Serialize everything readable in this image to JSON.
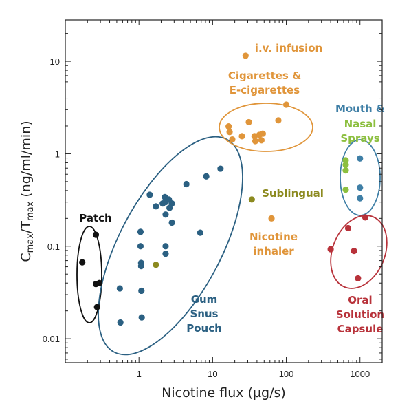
{
  "chart_data": {
    "type": "scatter",
    "xscale": "log",
    "yscale": "log",
    "xlim": [
      0.1,
      2000
    ],
    "ylim": [
      0.0055,
      28
    ],
    "xlabel": "Nicotine flux (µg/s)",
    "ylabel_main": "C",
    "ylabel_sub1": "max",
    "ylabel_mid": "/T",
    "ylabel_sub2": "max",
    "ylabel_units": " (ng/ml/min)",
    "x_ticks": [
      {
        "value": 1,
        "label": "1"
      },
      {
        "value": 10,
        "label": "10"
      },
      {
        "value": 100,
        "label": "100"
      },
      {
        "value": 1000,
        "label": "1000"
      }
    ],
    "y_ticks": [
      {
        "value": 0.01,
        "label": "0.01"
      },
      {
        "value": 0.1,
        "label": "0.1"
      },
      {
        "value": 1,
        "label": "1"
      },
      {
        "value": 10,
        "label": "10"
      }
    ],
    "grid": false,
    "series": [
      {
        "name": "Patch",
        "color": "#111111",
        "points": [
          {
            "x": 0.17,
            "y": 0.067
          },
          {
            "x": 0.26,
            "y": 0.133
          },
          {
            "x": 0.26,
            "y": 0.039
          },
          {
            "x": 0.29,
            "y": 0.04
          },
          {
            "x": 0.27,
            "y": 0.022
          }
        ]
      },
      {
        "name": "Gum Snus Pouch",
        "color": "#2b6082",
        "points": [
          {
            "x": 0.55,
            "y": 0.035
          },
          {
            "x": 0.56,
            "y": 0.015
          },
          {
            "x": 1.05,
            "y": 0.143
          },
          {
            "x": 1.05,
            "y": 0.1
          },
          {
            "x": 1.07,
            "y": 0.066
          },
          {
            "x": 1.07,
            "y": 0.061
          },
          {
            "x": 1.08,
            "y": 0.033
          },
          {
            "x": 1.09,
            "y": 0.017
          },
          {
            "x": 1.4,
            "y": 0.36
          },
          {
            "x": 1.7,
            "y": 0.27
          },
          {
            "x": 2.1,
            "y": 0.29
          },
          {
            "x": 2.25,
            "y": 0.34
          },
          {
            "x": 2.3,
            "y": 0.3
          },
          {
            "x": 2.3,
            "y": 0.22
          },
          {
            "x": 2.3,
            "y": 0.1
          },
          {
            "x": 2.3,
            "y": 0.083
          },
          {
            "x": 2.55,
            "y": 0.32
          },
          {
            "x": 2.6,
            "y": 0.26
          },
          {
            "x": 2.8,
            "y": 0.29
          },
          {
            "x": 2.8,
            "y": 0.18
          },
          {
            "x": 4.4,
            "y": 0.47
          },
          {
            "x": 6.8,
            "y": 0.14
          },
          {
            "x": 8.2,
            "y": 0.57
          },
          {
            "x": 12.8,
            "y": 0.69
          }
        ]
      },
      {
        "name": "Gum Snus Pouch (olive marker)",
        "color": "#8c8a1f",
        "points": [
          {
            "x": 1.7,
            "y": 0.063
          }
        ]
      },
      {
        "name": "Cigarettes & E-cigarettes",
        "color": "#e0953a",
        "points": [
          {
            "x": 16.5,
            "y": 1.98
          },
          {
            "x": 17.0,
            "y": 1.72
          },
          {
            "x": 18.5,
            "y": 1.43
          },
          {
            "x": 25.0,
            "y": 1.55
          },
          {
            "x": 31.0,
            "y": 2.2
          },
          {
            "x": 37.0,
            "y": 1.55
          },
          {
            "x": 38.0,
            "y": 1.37
          },
          {
            "x": 43.0,
            "y": 1.6
          },
          {
            "x": 46.0,
            "y": 1.4
          },
          {
            "x": 48.0,
            "y": 1.65
          },
          {
            "x": 78.0,
            "y": 2.3
          },
          {
            "x": 100.0,
            "y": 3.4
          }
        ]
      },
      {
        "name": "i.v. infusion",
        "color": "#e0953a",
        "points": [
          {
            "x": 28.0,
            "y": 11.5
          }
        ]
      },
      {
        "name": "Nicotine inhaler",
        "color": "#e0953a",
        "points": [
          {
            "x": 63.0,
            "y": 0.2
          }
        ]
      },
      {
        "name": "Sublingual",
        "color": "#8c8a1f",
        "points": [
          {
            "x": 34.0,
            "y": 0.32
          }
        ]
      },
      {
        "name": "Mouth & Nasal Sprays (green)",
        "color": "#8cbf3f",
        "points": [
          {
            "x": 640.0,
            "y": 0.85
          },
          {
            "x": 640.0,
            "y": 0.76
          },
          {
            "x": 640.0,
            "y": 0.66
          },
          {
            "x": 640.0,
            "y": 0.41
          }
        ]
      },
      {
        "name": "Mouth & Nasal Sprays (blue)",
        "color": "#3f7fa6",
        "points": [
          {
            "x": 1000.0,
            "y": 0.89
          },
          {
            "x": 1000.0,
            "y": 0.43
          },
          {
            "x": 1000.0,
            "y": 0.33
          }
        ]
      },
      {
        "name": "Oral Solution Capsule",
        "color": "#b8323a",
        "points": [
          {
            "x": 400.0,
            "y": 0.093
          },
          {
            "x": 690.0,
            "y": 0.157
          },
          {
            "x": 830.0,
            "y": 0.089
          },
          {
            "x": 940.0,
            "y": 0.045
          },
          {
            "x": 1180.0,
            "y": 0.205
          }
        ]
      }
    ],
    "annotations": [
      {
        "lines": [
          "Patch"
        ],
        "color": "#111111"
      },
      {
        "lines": [
          "Gum",
          "Snus",
          "Pouch"
        ],
        "color": "#2b6082"
      },
      {
        "lines": [
          "i.v. infusion"
        ],
        "color": "#e0953a"
      },
      {
        "lines": [
          "Cigarettes &",
          "E-cigarettes"
        ],
        "color": "#e0953a"
      },
      {
        "lines": [
          "Sublingual"
        ],
        "color": "#8c8a1f"
      },
      {
        "lines": [
          "Nicotine",
          "inhaler"
        ],
        "color": "#e0953a"
      },
      {
        "lines": [
          "Mouth &"
        ],
        "color": "#3f7fa6"
      },
      {
        "lines": [
          "Nasal",
          "Sprays"
        ],
        "color": "#8cbf3f"
      },
      {
        "lines": [
          "Oral",
          "Solution",
          "Capsule"
        ],
        "color": "#b8323a"
      }
    ],
    "group_ellipses": [
      {
        "group": "Patch",
        "color": "#111111"
      },
      {
        "group": "Gum Snus Pouch",
        "color": "#2b6082"
      },
      {
        "group": "Cigarettes & E-cigarettes",
        "color": "#e0953a"
      },
      {
        "group": "Mouth & Nasal Sprays",
        "color": "#3f7fa6"
      },
      {
        "group": "Oral Solution Capsule",
        "color": "#b8323a"
      }
    ]
  }
}
